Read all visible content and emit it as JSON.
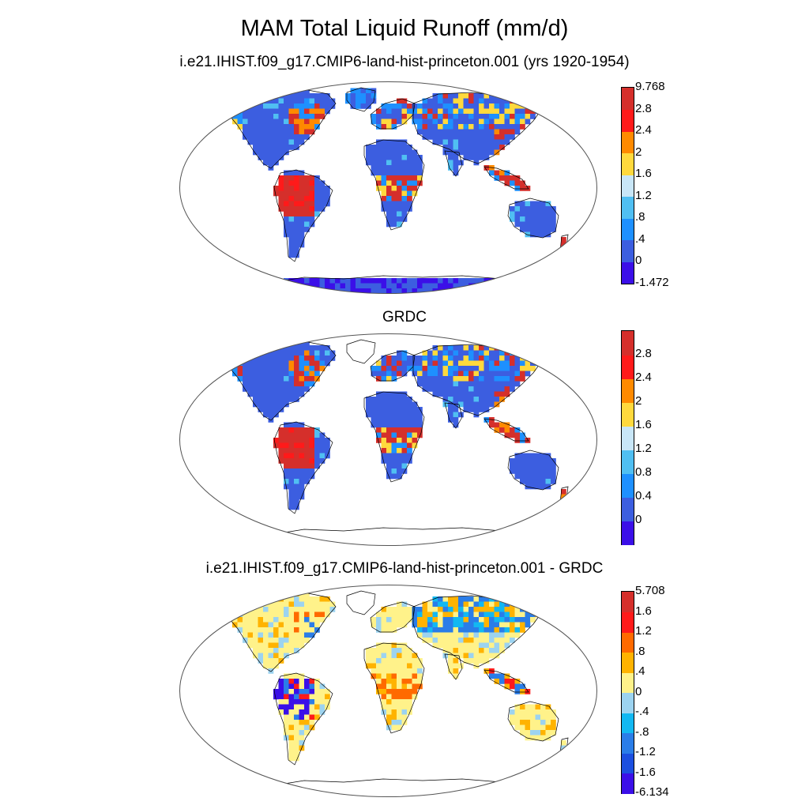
{
  "title": "MAM Total Liquid Runoff (mm/d)",
  "panels": [
    {
      "subtitle": "i.e21.IHIST.f09_g17.CMIP6-land-hist-princeton.001 (yrs 1920-1954)",
      "colors": [
        "#3b0fe8",
        "#3c5ee0",
        "#1e90ff",
        "#50bff2",
        "#c8e6f7",
        "#ffd93d",
        "#ff8a00",
        "#ff1a1a",
        "#d52f2b"
      ],
      "labels": [
        "-1.472",
        "0",
        ".4",
        ".8",
        "1.2",
        "1.6",
        "2",
        "2.4",
        "2.8",
        "9.768"
      ],
      "has_endpoints": true,
      "scheme": "runoff"
    },
    {
      "subtitle": "GRDC",
      "colors": [
        "#3b0fe8",
        "#3c5ee0",
        "#1e90ff",
        "#50bff2",
        "#c8e6f7",
        "#ffd93d",
        "#ff8a00",
        "#ff1a1a",
        "#d52f2b"
      ],
      "labels": [
        "",
        "0",
        "0.4",
        "0.8",
        "1.2",
        "1.6",
        "2",
        "2.4",
        "2.8",
        ""
      ],
      "has_endpoints": false,
      "scheme": "runoff"
    },
    {
      "subtitle": "i.e21.IHIST.f09_g17.CMIP6-land-hist-princeton.001 - GRDC",
      "colors": [
        "#3b0fe8",
        "#1c4fe0",
        "#2a7de8",
        "#12b8f2",
        "#9cd3f0",
        "#fff28a",
        "#ffb300",
        "#ff6a00",
        "#ff1a1a",
        "#d52f2b"
      ],
      "labels": [
        "-6.134",
        "-1.6",
        "-1.2",
        "-.8",
        "-.4",
        "0",
        ".4",
        ".8",
        "1.2",
        "1.6",
        "5.708"
      ],
      "has_endpoints": true,
      "scheme": "diff"
    }
  ]
}
